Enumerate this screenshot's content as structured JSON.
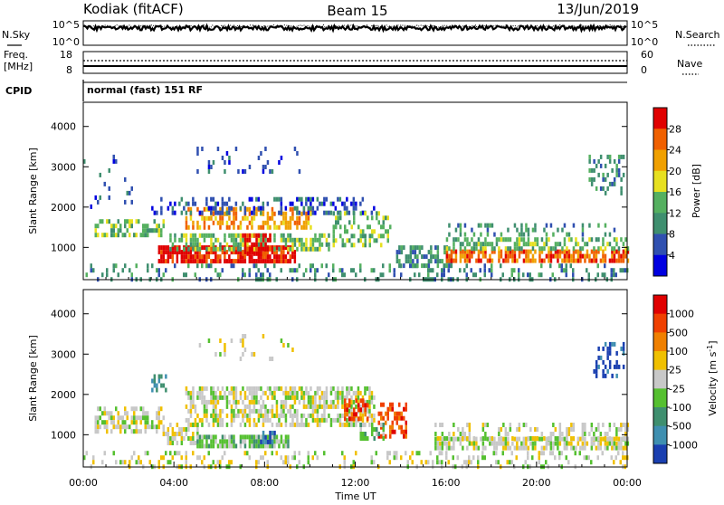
{
  "header": {
    "station": "Kodiak (fitACF)",
    "beam": "Beam 15",
    "date": "13/Jun/2019"
  },
  "top_panels": {
    "nsky_label": "N.Sky",
    "nsky_ticks": [
      "10^5",
      "10^0"
    ],
    "nsearch_label": "N.Search",
    "nsearch_ticks": [
      "10^5",
      "10^0"
    ],
    "freq_label_line1": "Freq.",
    "freq_label_line2": "[MHz]",
    "freq_ticks": [
      "18",
      "8"
    ],
    "nave_label": "Nave",
    "nave_ticks": [
      "60",
      "0"
    ],
    "cpid_label": "CPID",
    "cpid_text": "normal (fast) 151 RF"
  },
  "chart_data": [
    {
      "type": "heatmap",
      "name": "power",
      "ylabel": "Slant Range [km]",
      "y_ticks": [
        "1000",
        "2000",
        "3000",
        "4000"
      ],
      "ylim": [
        200,
        4600
      ],
      "xlim_hours": [
        0,
        24
      ],
      "colorbar_label": "Power [dB]",
      "colorbar_ticks": [
        "4",
        "8",
        "12",
        "16",
        "20",
        "24",
        "28"
      ],
      "colorbar_colors": [
        "#0000e0",
        "#3050b0",
        "#3f8f6f",
        "#55b060",
        "#e7e020",
        "#f0a000",
        "#f06000",
        "#e00000"
      ],
      "regions": [
        {
          "t0": 0.0,
          "t1": 24.0,
          "r0": 250,
          "r1": 600,
          "level": 2,
          "density": 0.25
        },
        {
          "t0": 0.5,
          "t1": 3.5,
          "r0": 1350,
          "r1": 1700,
          "level": 3,
          "density": 0.45
        },
        {
          "t0": 3.3,
          "t1": 9.3,
          "r0": 650,
          "r1": 1050,
          "level": 7,
          "density": 0.8
        },
        {
          "t0": 3.8,
          "t1": 10.8,
          "r0": 1000,
          "r1": 1350,
          "level": 3,
          "density": 0.55
        },
        {
          "t0": 4.5,
          "t1": 10.0,
          "r0": 1450,
          "r1": 2000,
          "level": 5,
          "density": 0.55
        },
        {
          "t0": 3.0,
          "t1": 12.8,
          "r0": 1900,
          "r1": 2250,
          "level": 1,
          "density": 0.35
        },
        {
          "t0": 7.0,
          "t1": 8.2,
          "r0": 900,
          "r1": 1350,
          "level": 7,
          "density": 0.7
        },
        {
          "t0": 11.0,
          "t1": 13.6,
          "r0": 1100,
          "r1": 1900,
          "level": 3,
          "density": 0.35
        },
        {
          "t0": 13.8,
          "t1": 16.2,
          "r0": 600,
          "r1": 1050,
          "level": 2,
          "density": 0.45
        },
        {
          "t0": 16.0,
          "t1": 24.0,
          "r0": 700,
          "r1": 950,
          "level": 6,
          "density": 0.7
        },
        {
          "t0": 16.0,
          "t1": 24.0,
          "r0": 950,
          "r1": 1250,
          "level": 3,
          "density": 0.5
        },
        {
          "t0": 16.0,
          "t1": 23.5,
          "r0": 1300,
          "r1": 1600,
          "level": 2,
          "density": 0.25
        },
        {
          "t0": 22.3,
          "t1": 23.8,
          "r0": 2300,
          "r1": 3300,
          "level": 2,
          "density": 0.3
        },
        {
          "t0": 5.0,
          "t1": 9.5,
          "r0": 2900,
          "r1": 3500,
          "level": 1,
          "density": 0.12
        },
        {
          "t0": 0.0,
          "t1": 3.0,
          "r0": 2000,
          "r1": 3300,
          "level": 1,
          "density": 0.05
        }
      ]
    },
    {
      "type": "heatmap",
      "name": "velocity",
      "ylabel": "Slant Range [km]",
      "y_ticks": [
        "1000",
        "2000",
        "3000",
        "4000"
      ],
      "ylim": [
        200,
        4600
      ],
      "xlim_hours": [
        0,
        24
      ],
      "xlabel": "Time UT",
      "x_ticks": [
        "00:00",
        "04:00",
        "08:00",
        "12:00",
        "16:00",
        "20:00",
        "00:00"
      ],
      "colorbar_label": "Velocity [m s",
      "colorbar_label_sup": "-1",
      "colorbar_label_end": "]",
      "colorbar_ticks": [
        "1000",
        "500",
        "100",
        "25",
        "-25",
        "-100",
        "-500",
        "-1000"
      ],
      "colorbar_colors": [
        "#1a3fb0",
        "#3f8fb0",
        "#3f8f6f",
        "#55c030",
        "#c8c8c8",
        "#f0c000",
        "#f08000",
        "#f04000",
        "#e00000"
      ],
      "regions": [
        {
          "t0": 0.0,
          "t1": 24.0,
          "r0": 250,
          "r1": 600,
          "level": 4,
          "density": 0.22
        },
        {
          "t0": 0.5,
          "t1": 3.5,
          "r0": 1100,
          "r1": 1700,
          "level": 4,
          "density": 0.5
        },
        {
          "t0": 3.5,
          "t1": 5.0,
          "r0": 800,
          "r1": 1300,
          "level": 4,
          "density": 0.5
        },
        {
          "t0": 5.0,
          "t1": 9.0,
          "r0": 700,
          "r1": 1000,
          "level": 3,
          "density": 0.8
        },
        {
          "t0": 7.8,
          "t1": 8.4,
          "r0": 850,
          "r1": 1100,
          "level": 0,
          "density": 0.6
        },
        {
          "t0": 4.5,
          "t1": 12.8,
          "r0": 1200,
          "r1": 2200,
          "level": 4,
          "density": 0.6
        },
        {
          "t0": 11.5,
          "t1": 12.5,
          "r0": 1400,
          "r1": 1900,
          "level": 7,
          "density": 0.6
        },
        {
          "t0": 13.0,
          "t1": 14.2,
          "r0": 1000,
          "r1": 1800,
          "level": 7,
          "density": 0.55
        },
        {
          "t0": 12.2,
          "t1": 13.2,
          "r0": 900,
          "r1": 1300,
          "level": 3,
          "density": 0.5
        },
        {
          "t0": 15.5,
          "t1": 24.0,
          "r0": 700,
          "r1": 950,
          "level": 4,
          "density": 0.7
        },
        {
          "t0": 15.5,
          "t1": 24.0,
          "r0": 950,
          "r1": 1300,
          "level": 4,
          "density": 0.35
        },
        {
          "t0": 3.0,
          "t1": 3.6,
          "r0": 2100,
          "r1": 2500,
          "level": 2,
          "density": 0.5
        },
        {
          "t0": 22.5,
          "t1": 23.8,
          "r0": 2500,
          "r1": 3300,
          "level": 0,
          "density": 0.35
        },
        {
          "t0": 5.0,
          "t1": 9.5,
          "r0": 2900,
          "r1": 3500,
          "level": 4,
          "density": 0.12
        }
      ]
    }
  ]
}
